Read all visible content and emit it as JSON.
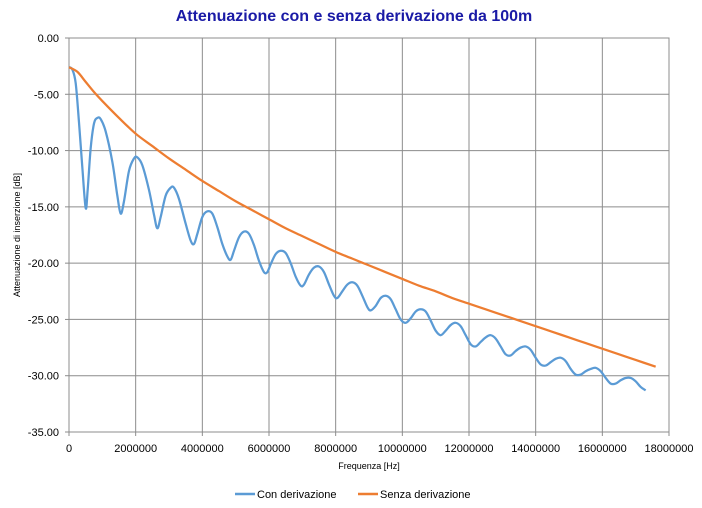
{
  "chart_data": {
    "type": "line",
    "title": "Attenuazione con e senza derivazione da 100m",
    "xlabel": "Frequenza [Hz]",
    "ylabel": "Attenuazione di inserzione [dB]",
    "xlim": [
      0,
      18000000
    ],
    "ylim": [
      -35,
      0
    ],
    "x_ticks": [
      0,
      2000000,
      4000000,
      6000000,
      8000000,
      10000000,
      12000000,
      14000000,
      16000000,
      18000000
    ],
    "x_tick_labels": [
      "0",
      "2000000",
      "4000000",
      "6000000",
      "8000000",
      "10000000",
      "12000000",
      "14000000",
      "16000000",
      "18000000"
    ],
    "y_ticks": [
      0,
      -5,
      -10,
      -15,
      -20,
      -25,
      -30,
      -35
    ],
    "y_tick_labels": [
      "0.00",
      "-5.00",
      "-10.00",
      "-15.00",
      "-20.00",
      "-25.00",
      "-30.00",
      "-35.00"
    ],
    "grid": true,
    "legend_position": "bottom",
    "series": [
      {
        "name": "Con derivazione",
        "color": "#5b9bd5",
        "points": [
          [
            0,
            -2.6
          ],
          [
            100000,
            -2.8
          ],
          [
            200000,
            -4.0
          ],
          [
            300000,
            -7.5
          ],
          [
            400000,
            -11.5
          ],
          [
            500000,
            -15.1
          ],
          [
            560000,
            -13.5
          ],
          [
            650000,
            -9.8
          ],
          [
            750000,
            -7.6
          ],
          [
            850000,
            -7.1
          ],
          [
            950000,
            -7.2
          ],
          [
            1100000,
            -8.3
          ],
          [
            1300000,
            -11.0
          ],
          [
            1450000,
            -14.0
          ],
          [
            1550000,
            -15.6
          ],
          [
            1650000,
            -14.5
          ],
          [
            1800000,
            -11.8
          ],
          [
            1950000,
            -10.7
          ],
          [
            2050000,
            -10.6
          ],
          [
            2200000,
            -11.3
          ],
          [
            2400000,
            -13.5
          ],
          [
            2550000,
            -15.7
          ],
          [
            2650000,
            -16.9
          ],
          [
            2750000,
            -15.9
          ],
          [
            2900000,
            -14.0
          ],
          [
            3050000,
            -13.3
          ],
          [
            3150000,
            -13.3
          ],
          [
            3300000,
            -14.3
          ],
          [
            3500000,
            -16.5
          ],
          [
            3650000,
            -18.0
          ],
          [
            3750000,
            -18.3
          ],
          [
            3850000,
            -17.4
          ],
          [
            4000000,
            -15.9
          ],
          [
            4150000,
            -15.4
          ],
          [
            4300000,
            -15.6
          ],
          [
            4450000,
            -16.8
          ],
          [
            4600000,
            -18.3
          ],
          [
            4750000,
            -19.4
          ],
          [
            4850000,
            -19.7
          ],
          [
            4950000,
            -18.9
          ],
          [
            5100000,
            -17.7
          ],
          [
            5250000,
            -17.2
          ],
          [
            5400000,
            -17.4
          ],
          [
            5550000,
            -18.4
          ],
          [
            5700000,
            -19.8
          ],
          [
            5850000,
            -20.8
          ],
          [
            5950000,
            -20.8
          ],
          [
            6050000,
            -20.1
          ],
          [
            6200000,
            -19.2
          ],
          [
            6350000,
            -18.9
          ],
          [
            6500000,
            -19.1
          ],
          [
            6650000,
            -20.0
          ],
          [
            6800000,
            -21.2
          ],
          [
            6950000,
            -22.0
          ],
          [
            7050000,
            -21.9
          ],
          [
            7200000,
            -21.0
          ],
          [
            7350000,
            -20.4
          ],
          [
            7500000,
            -20.3
          ],
          [
            7650000,
            -20.8
          ],
          [
            7800000,
            -21.9
          ],
          [
            7950000,
            -22.9
          ],
          [
            8050000,
            -23.1
          ],
          [
            8200000,
            -22.5
          ],
          [
            8350000,
            -21.9
          ],
          [
            8500000,
            -21.7
          ],
          [
            8650000,
            -22.0
          ],
          [
            8800000,
            -22.9
          ],
          [
            8950000,
            -23.9
          ],
          [
            9050000,
            -24.2
          ],
          [
            9200000,
            -23.8
          ],
          [
            9350000,
            -23.1
          ],
          [
            9500000,
            -22.9
          ],
          [
            9650000,
            -23.2
          ],
          [
            9800000,
            -24.1
          ],
          [
            9950000,
            -25.0
          ],
          [
            10100000,
            -25.3
          ],
          [
            10250000,
            -24.9
          ],
          [
            10400000,
            -24.3
          ],
          [
            10550000,
            -24.1
          ],
          [
            10700000,
            -24.3
          ],
          [
            10850000,
            -25.1
          ],
          [
            11000000,
            -26.0
          ],
          [
            11150000,
            -26.4
          ],
          [
            11300000,
            -26.0
          ],
          [
            11450000,
            -25.5
          ],
          [
            11600000,
            -25.3
          ],
          [
            11750000,
            -25.6
          ],
          [
            11900000,
            -26.4
          ],
          [
            12050000,
            -27.2
          ],
          [
            12200000,
            -27.4
          ],
          [
            12350000,
            -27.0
          ],
          [
            12500000,
            -26.6
          ],
          [
            12650000,
            -26.4
          ],
          [
            12800000,
            -26.7
          ],
          [
            12950000,
            -27.4
          ],
          [
            13100000,
            -28.1
          ],
          [
            13250000,
            -28.2
          ],
          [
            13400000,
            -27.8
          ],
          [
            13550000,
            -27.5
          ],
          [
            13700000,
            -27.4
          ],
          [
            13850000,
            -27.7
          ],
          [
            14000000,
            -28.4
          ],
          [
            14150000,
            -29.0
          ],
          [
            14300000,
            -29.1
          ],
          [
            14450000,
            -28.8
          ],
          [
            14600000,
            -28.5
          ],
          [
            14750000,
            -28.4
          ],
          [
            14900000,
            -28.7
          ],
          [
            15050000,
            -29.4
          ],
          [
            15200000,
            -29.9
          ],
          [
            15350000,
            -29.9
          ],
          [
            15500000,
            -29.6
          ],
          [
            15650000,
            -29.4
          ],
          [
            15800000,
            -29.3
          ],
          [
            15950000,
            -29.6
          ],
          [
            16100000,
            -30.2
          ],
          [
            16250000,
            -30.7
          ],
          [
            16400000,
            -30.7
          ],
          [
            16550000,
            -30.4
          ],
          [
            16700000,
            -30.2
          ],
          [
            16850000,
            -30.2
          ],
          [
            17000000,
            -30.5
          ],
          [
            17150000,
            -31.0
          ],
          [
            17300000,
            -31.3
          ]
        ]
      },
      {
        "name": "Senza derivazione",
        "color": "#ed7d31",
        "points": [
          [
            0,
            -2.6
          ],
          [
            250000,
            -3.0
          ],
          [
            500000,
            -3.9
          ],
          [
            750000,
            -4.8
          ],
          [
            1000000,
            -5.6
          ],
          [
            1500000,
            -7.1
          ],
          [
            2000000,
            -8.5
          ],
          [
            2500000,
            -9.6
          ],
          [
            3000000,
            -10.7
          ],
          [
            3500000,
            -11.7
          ],
          [
            4000000,
            -12.7
          ],
          [
            4500000,
            -13.6
          ],
          [
            5000000,
            -14.5
          ],
          [
            5500000,
            -15.3
          ],
          [
            6000000,
            -16.1
          ],
          [
            6500000,
            -16.9
          ],
          [
            7000000,
            -17.6
          ],
          [
            7500000,
            -18.3
          ],
          [
            8000000,
            -19.0
          ],
          [
            8500000,
            -19.6
          ],
          [
            9000000,
            -20.2
          ],
          [
            9500000,
            -20.8
          ],
          [
            10000000,
            -21.4
          ],
          [
            10500000,
            -22.0
          ],
          [
            11000000,
            -22.5
          ],
          [
            11500000,
            -23.1
          ],
          [
            12000000,
            -23.6
          ],
          [
            12500000,
            -24.1
          ],
          [
            13000000,
            -24.6
          ],
          [
            13500000,
            -25.1
          ],
          [
            14000000,
            -25.6
          ],
          [
            14500000,
            -26.1
          ],
          [
            15000000,
            -26.6
          ],
          [
            15500000,
            -27.1
          ],
          [
            16000000,
            -27.6
          ],
          [
            16500000,
            -28.1
          ],
          [
            17000000,
            -28.6
          ],
          [
            17600000,
            -29.2
          ]
        ]
      }
    ]
  }
}
